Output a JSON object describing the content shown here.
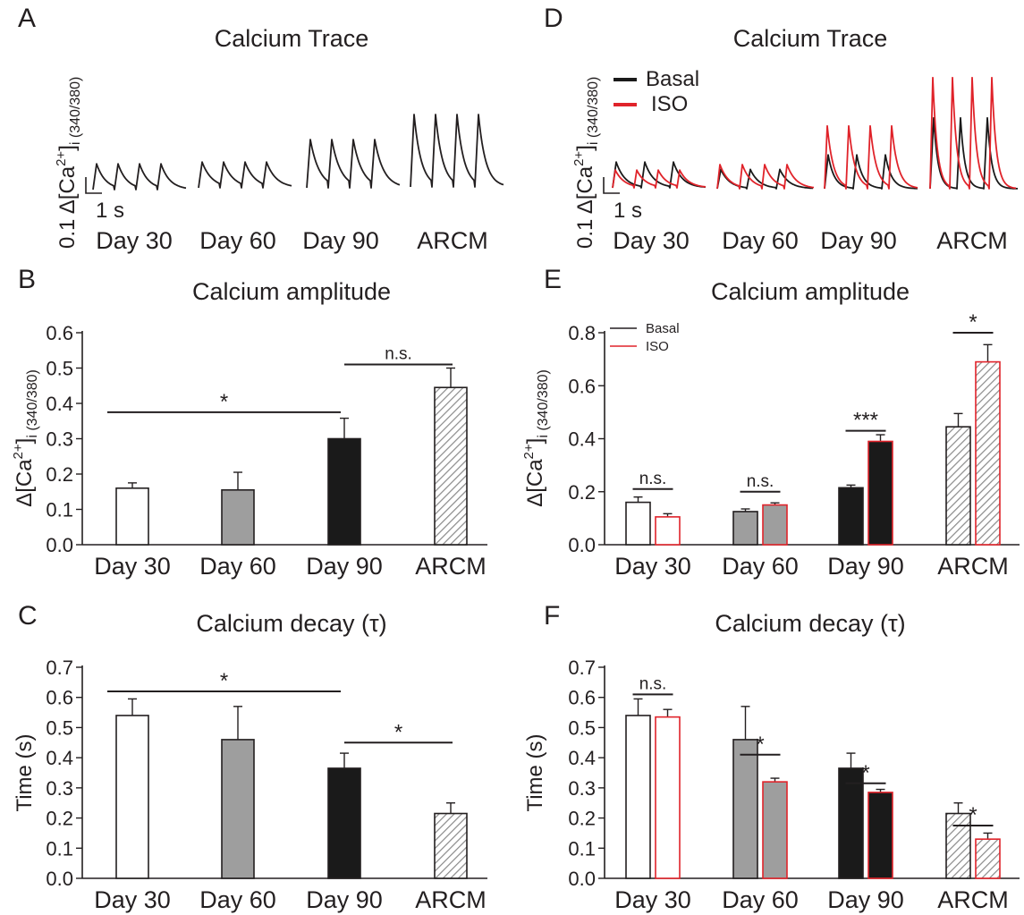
{
  "colors": {
    "ink": "#231f20",
    "gray": "#9e9e9e",
    "black": "#1a1a1a",
    "white": "#ffffff",
    "red": "#e0232a",
    "hatch": "#8a8a8a"
  },
  "traces": {
    "A": {
      "panel_label": "A",
      "title": "Calcium Trace",
      "ylabel_prefix": "0.1 Δ[Ca",
      "ylabel_sup": "2+",
      "ylabel_suffix": "]",
      "ylabel_sub": "i (340/380)",
      "scale_label": "1 s",
      "groups": [
        "Day 30",
        "Day 60",
        "Day 90",
        "ARCM"
      ],
      "relative_amplitude": [
        0.16,
        0.16,
        0.3,
        0.45
      ]
    },
    "D": {
      "panel_label": "D",
      "title": "Calcium Trace",
      "ylabel_prefix": "0.1 Δ[Ca",
      "ylabel_sup": "2+",
      "ylabel_suffix": "]",
      "ylabel_sub": "i (340/380)",
      "scale_label": "1 s",
      "legend": [
        "Basal",
        "ISO"
      ],
      "groups": [
        "Day 30",
        "Day 60",
        "Day 90",
        "ARCM"
      ],
      "relative_amplitude_basal": [
        0.16,
        0.12,
        0.21,
        0.44
      ],
      "relative_amplitude_iso": [
        0.11,
        0.15,
        0.39,
        0.69
      ]
    }
  },
  "chart_data": [
    {
      "panel": "B",
      "type": "bar",
      "title": "Calcium amplitude",
      "ylabel_prefix": "Δ[Ca",
      "ylabel_sup": "2+",
      "ylabel_suffix": "]",
      "ylabel_sub": "i (340/380)",
      "categories": [
        "Day 30",
        "Day 60",
        "Day 90",
        "ARCM"
      ],
      "series": [
        {
          "name": "Basal",
          "values": [
            0.16,
            0.155,
            0.3,
            0.445
          ],
          "errors": [
            0.015,
            0.05,
            0.058,
            0.055
          ]
        }
      ],
      "fills": [
        "white",
        "gray",
        "black",
        "hatch"
      ],
      "ylim": [
        0,
        0.6
      ],
      "yticks": [
        "0.0",
        "0.1",
        "0.2",
        "0.3",
        "0.4",
        "0.5",
        "0.6"
      ],
      "significance": [
        {
          "from": 0,
          "to": 2,
          "label": "*",
          "y": 0.375
        },
        {
          "from": 2,
          "to": 3,
          "label": "n.s.",
          "y": 0.51
        }
      ]
    },
    {
      "panel": "C",
      "type": "bar",
      "title": "Calcium decay (τ)",
      "ylabel": "Time (s)",
      "categories": [
        "Day 30",
        "Day 60",
        "Day 90",
        "ARCM"
      ],
      "series": [
        {
          "name": "Basal",
          "values": [
            0.54,
            0.46,
            0.365,
            0.215
          ],
          "errors": [
            0.055,
            0.11,
            0.05,
            0.035
          ]
        }
      ],
      "fills": [
        "white",
        "gray",
        "black",
        "hatch"
      ],
      "ylim": [
        0,
        0.7
      ],
      "yticks": [
        "0.0",
        "0.1",
        "0.2",
        "0.3",
        "0.4",
        "0.5",
        "0.6",
        "0.7"
      ],
      "significance": [
        {
          "from": 0,
          "to": 2,
          "label": "*",
          "y": 0.62
        },
        {
          "from": 2,
          "to": 3,
          "label": "*",
          "y": 0.45
        }
      ]
    },
    {
      "panel": "E",
      "type": "bar",
      "title": "Calcium amplitude",
      "ylabel_prefix": "Δ[Ca",
      "ylabel_sup": "2+",
      "ylabel_suffix": "]",
      "ylabel_sub": "i (340/380)",
      "legend": [
        "Basal",
        "ISO"
      ],
      "categories": [
        "Day 30",
        "Day 60",
        "Day 90",
        "ARCM"
      ],
      "series": [
        {
          "name": "Basal",
          "values": [
            0.16,
            0.125,
            0.215,
            0.445
          ],
          "errors": [
            0.02,
            0.01,
            0.01,
            0.05
          ]
        },
        {
          "name": "ISO",
          "values": [
            0.105,
            0.15,
            0.39,
            0.69
          ],
          "errors": [
            0.012,
            0.008,
            0.025,
            0.065
          ]
        }
      ],
      "fills": [
        "white",
        "gray",
        "black",
        "hatch"
      ],
      "ylim": [
        0,
        0.8
      ],
      "yticks": [
        "0.0",
        "0.2",
        "0.4",
        "0.6",
        "0.8"
      ],
      "significance": [
        {
          "group": 0,
          "label": "n.s.",
          "y": 0.21
        },
        {
          "group": 1,
          "label": "n.s.",
          "y": 0.2
        },
        {
          "group": 2,
          "label": "***",
          "y": 0.43
        },
        {
          "group": 3,
          "label": "*",
          "y": 0.8
        }
      ]
    },
    {
      "panel": "F",
      "type": "bar",
      "title": "Calcium decay (τ)",
      "ylabel": "Time (s)",
      "categories": [
        "Day 30",
        "Day 60",
        "Day 90",
        "ARCM"
      ],
      "series": [
        {
          "name": "Basal",
          "values": [
            0.54,
            0.46,
            0.365,
            0.215
          ],
          "errors": [
            0.055,
            0.11,
            0.05,
            0.035
          ]
        },
        {
          "name": "ISO",
          "values": [
            0.535,
            0.32,
            0.285,
            0.13
          ],
          "errors": [
            0.025,
            0.012,
            0.01,
            0.02
          ]
        }
      ],
      "fills": [
        "white",
        "gray",
        "black",
        "hatch"
      ],
      "ylim": [
        0,
        0.7
      ],
      "yticks": [
        "0.0",
        "0.1",
        "0.2",
        "0.3",
        "0.4",
        "0.5",
        "0.6",
        "0.7"
      ],
      "significance": [
        {
          "group": 0,
          "label": "n.s.",
          "y": 0.61
        },
        {
          "group": 1,
          "label": "*",
          "y": 0.41
        },
        {
          "group": 2,
          "label": "*",
          "y": 0.315
        },
        {
          "group": 3,
          "label": "*",
          "y": 0.175
        }
      ]
    }
  ]
}
